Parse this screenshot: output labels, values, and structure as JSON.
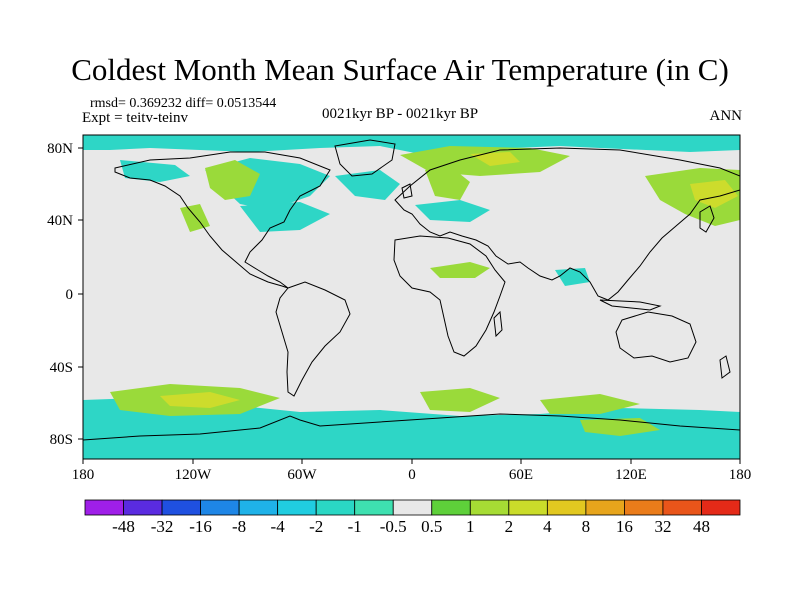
{
  "title": "Coldest Month Mean Surface Air Temperature (in C)",
  "stats": "rmsd= 0.369232 diff= 0.0513544",
  "experiment": "Expt = teitv-teinv",
  "period": "0021kyr BP - 0021kyr BP",
  "season": "ANN",
  "lat_labels": [
    "80N",
    "40N",
    "0",
    "40S",
    "80S"
  ],
  "lon_labels": [
    "180",
    "120W",
    "60W",
    "0",
    "60E",
    "120E",
    "180"
  ],
  "colorbar": {
    "colors": [
      "#9f1fe8",
      "#5a2be0",
      "#1f50e0",
      "#1e86e6",
      "#1fb2e8",
      "#20cde0",
      "#2ad7c4",
      "#3ee0b0",
      "#e8e8e8",
      "#5ed03a",
      "#a6dc34",
      "#cadc2a",
      "#e2c820",
      "#e7a51c",
      "#ea7c1a",
      "#e9551a",
      "#e42a18"
    ],
    "labels": [
      "-48",
      "-32",
      "-16",
      "-8",
      "-4",
      "-2",
      "-1",
      "-0.5",
      "0.5",
      "1",
      "2",
      "4",
      "8",
      "16",
      "32",
      "48"
    ]
  },
  "map_colors": {
    "background": "#e8e8e8",
    "cyan": "#2ed6c6",
    "green": "#9ada3a",
    "light_green": "#b6e03c",
    "yellow_green": "#cddc2c",
    "coast": "#000000"
  }
}
